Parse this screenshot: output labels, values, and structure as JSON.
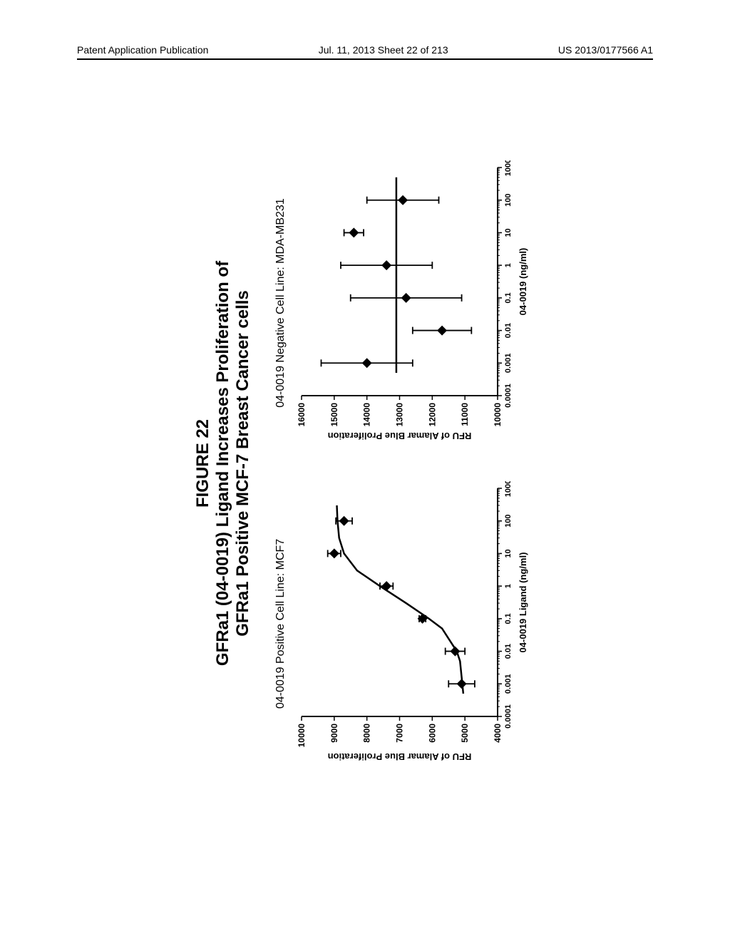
{
  "header": {
    "left": "Patent Application Publication",
    "center": "Jul. 11, 2013  Sheet 22 of 213",
    "right": "US 2013/0177566 A1"
  },
  "figure": {
    "num": "FIGURE 22",
    "title1": "GFRa1 (04-0019) Ligand Increases Proliferation of",
    "title2": "GFRa1 Positive MCF-7 Breast Cancer cells"
  },
  "chart_left": {
    "type": "line-scatter",
    "title": "04-0019 Positive Cell Line: MCF7",
    "ylabel": "RFU of Alamar Blue Proliferation",
    "xlabel": "04-0019 Ligand (ng/ml)",
    "ylim": [
      4000,
      10000
    ],
    "ytick_step": 1000,
    "yticks": [
      4000,
      5000,
      6000,
      7000,
      8000,
      9000,
      10000
    ],
    "xscale": "log",
    "xlim": [
      0.0001,
      1000
    ],
    "xticks": [
      0.0001,
      0.001,
      0.01,
      0.1,
      1,
      10,
      100,
      1000
    ],
    "xtick_labels": [
      "0.0001",
      "0.001",
      "0.01",
      "0.1",
      "1",
      "10",
      "100",
      "1000"
    ],
    "points": [
      {
        "x": 0.001,
        "y": 5100,
        "err": 400
      },
      {
        "x": 0.01,
        "y": 5300,
        "err": 300
      },
      {
        "x": 0.1,
        "y": 6300,
        "err": 100
      },
      {
        "x": 1,
        "y": 7400,
        "err": 200
      },
      {
        "x": 10,
        "y": 9000,
        "err": 200
      },
      {
        "x": 100,
        "y": 8700,
        "err": 250
      }
    ],
    "curve": [
      {
        "x": 0.0005,
        "y": 5050
      },
      {
        "x": 0.001,
        "y": 5080
      },
      {
        "x": 0.005,
        "y": 5150
      },
      {
        "x": 0.01,
        "y": 5250
      },
      {
        "x": 0.05,
        "y": 5700
      },
      {
        "x": 0.1,
        "y": 6100
      },
      {
        "x": 0.3,
        "y": 6800
      },
      {
        "x": 1,
        "y": 7600
      },
      {
        "x": 3,
        "y": 8300
      },
      {
        "x": 10,
        "y": 8700
      },
      {
        "x": 30,
        "y": 8850
      },
      {
        "x": 100,
        "y": 8900
      },
      {
        "x": 300,
        "y": 8920
      }
    ],
    "marker_color": "#000000",
    "marker_size": 7,
    "line_color": "#000000",
    "line_width": 2.5,
    "axis_color": "#000000",
    "background_color": "#ffffff",
    "font_size": 12
  },
  "chart_right": {
    "type": "line-scatter",
    "title": "04-0019 Negative Cell Line: MDA-MB231",
    "ylabel": "RFU of Alamar Blue Proliferation",
    "xlabel": "04-0019 (ng/ml)",
    "ylim": [
      10000,
      16000
    ],
    "ytick_step": 1000,
    "yticks": [
      10000,
      11000,
      12000,
      13000,
      14000,
      15000,
      16000
    ],
    "xscale": "log",
    "xlim": [
      0.0001,
      1000
    ],
    "xticks": [
      0.0001,
      0.001,
      0.01,
      0.1,
      1,
      10,
      100,
      1000
    ],
    "xtick_labels": [
      "0.0001",
      "0.001",
      "0.01",
      "0.1",
      "1",
      "10",
      "100",
      "1000"
    ],
    "points": [
      {
        "x": 0.001,
        "y": 14000,
        "err": 1400
      },
      {
        "x": 0.01,
        "y": 11700,
        "err": 900
      },
      {
        "x": 0.1,
        "y": 12800,
        "err": 1700
      },
      {
        "x": 1,
        "y": 13400,
        "err": 1400
      },
      {
        "x": 10,
        "y": 14400,
        "err": 300
      },
      {
        "x": 100,
        "y": 12900,
        "err": 1100
      }
    ],
    "curve": [
      {
        "x": 0.0005,
        "y": 13100
      },
      {
        "x": 0.001,
        "y": 13100
      },
      {
        "x": 0.01,
        "y": 13100
      },
      {
        "x": 0.1,
        "y": 13100
      },
      {
        "x": 1,
        "y": 13100
      },
      {
        "x": 10,
        "y": 13100
      },
      {
        "x": 100,
        "y": 13100
      },
      {
        "x": 500,
        "y": 13100
      }
    ],
    "marker_color": "#000000",
    "marker_size": 7,
    "line_color": "#000000",
    "line_width": 2.5,
    "axis_color": "#000000",
    "background_color": "#ffffff",
    "font_size": 12
  }
}
